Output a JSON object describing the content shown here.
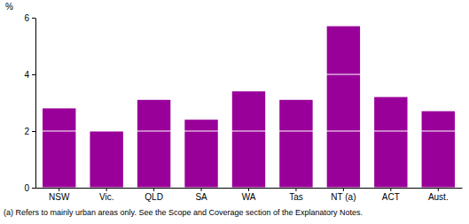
{
  "chart_data": {
    "type": "bar",
    "ylabel": "%",
    "categories": [
      "NSW",
      "Vic.",
      "QLD",
      "SA",
      "WA",
      "Tas",
      "NT (a)",
      "ACT",
      "Aust."
    ],
    "values": [
      2.8,
      2.0,
      3.1,
      2.4,
      3.4,
      3.1,
      5.7,
      3.2,
      2.7
    ],
    "color": "#990099",
    "ylim": [
      0,
      6
    ],
    "yticks": [
      0,
      2,
      4,
      6
    ],
    "grid": true,
    "annotations": [
      "(a) Refers to mainly urban areas only. See the Scope and Coverage section of the Explanatory Notes."
    ]
  }
}
